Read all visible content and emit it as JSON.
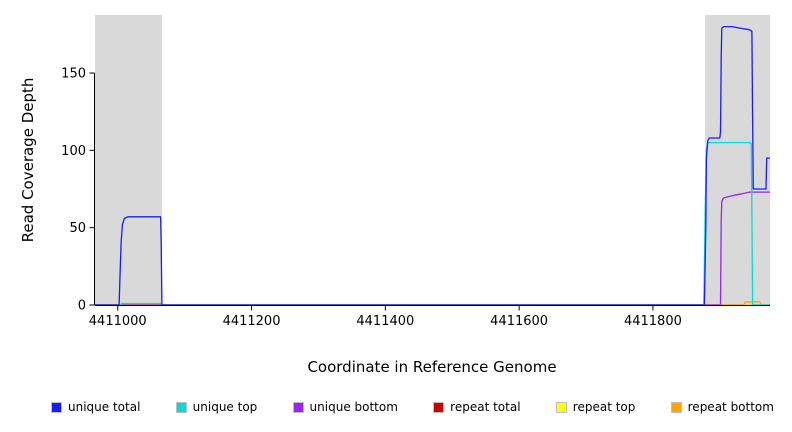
{
  "figure": {
    "background": "#ffffff"
  },
  "chart_data": {
    "type": "line",
    "title": "",
    "xlabel": "Coordinate in Reference Genome",
    "ylabel": "Read Coverage Depth",
    "xlim": [
      4410966,
      4411975
    ],
    "ylim": [
      0,
      187.5
    ],
    "xticks": [
      4411000,
      4411200,
      4411400,
      4411600,
      4411800
    ],
    "yticks": [
      0,
      50,
      100,
      150
    ],
    "grid": false,
    "plot_background": "#ffffff",
    "axis_color": "#000000",
    "highlight_regions": [
      {
        "x0": 4410966,
        "x1": 4411066,
        "color": "#d9d9d9"
      },
      {
        "x0": 4411878,
        "x1": 4411975,
        "color": "#d9d9d9"
      }
    ],
    "series": [
      {
        "name": "repeat total",
        "color": "#cc0000",
        "points": [
          [
            4410966,
            0
          ],
          [
            4411975,
            0
          ]
        ]
      },
      {
        "name": "repeat top",
        "color": "#ffff00",
        "points": [
          [
            4410966,
            0
          ],
          [
            4411005,
            0
          ],
          [
            4411007,
            1
          ],
          [
            4411064,
            1
          ],
          [
            4411066,
            0
          ],
          [
            4411975,
            0
          ]
        ]
      },
      {
        "name": "repeat bottom",
        "color": "#ffa500",
        "points": [
          [
            4410966,
            0
          ],
          [
            4411936,
            0
          ],
          [
            4411938,
            2
          ],
          [
            4411960,
            2
          ],
          [
            4411962,
            0
          ],
          [
            4411975,
            0
          ]
        ]
      },
      {
        "name": "unique bottom",
        "color": "#a020f0",
        "points": [
          [
            4410966,
            0
          ],
          [
            4411901,
            0
          ],
          [
            4411902,
            55
          ],
          [
            4411903,
            67
          ],
          [
            4411905,
            69
          ],
          [
            4411912,
            70
          ],
          [
            4411922,
            71
          ],
          [
            4411934,
            72
          ],
          [
            4411944,
            73
          ],
          [
            4411975,
            73
          ]
        ]
      },
      {
        "name": "unique top",
        "color": "#00dcdc",
        "points": [
          [
            4410966,
            0
          ],
          [
            4411004,
            0
          ],
          [
            4411006,
            1
          ],
          [
            4411064,
            1
          ],
          [
            4411066,
            0
          ],
          [
            4411876,
            0
          ],
          [
            4411878,
            60
          ],
          [
            4411880,
            100
          ],
          [
            4411882,
            105
          ],
          [
            4411946,
            105
          ],
          [
            4411947,
            104
          ],
          [
            4411948,
            60
          ],
          [
            4411949,
            0
          ],
          [
            4411975,
            0
          ]
        ]
      },
      {
        "name": "unique total",
        "color": "#1a1aff",
        "points": [
          [
            4410966,
            0
          ],
          [
            4411002,
            0
          ],
          [
            4411003,
            15
          ],
          [
            4411005,
            40
          ],
          [
            4411007,
            52
          ],
          [
            4411010,
            56
          ],
          [
            4411015,
            57
          ],
          [
            4411064,
            57
          ],
          [
            4411065,
            40
          ],
          [
            4411066,
            0
          ],
          [
            4411877,
            0
          ],
          [
            4411879,
            50
          ],
          [
            4411880,
            95
          ],
          [
            4411882,
            106
          ],
          [
            4411884,
            108
          ],
          [
            4411900,
            108
          ],
          [
            4411901,
            112
          ],
          [
            4411902,
            160
          ],
          [
            4411903,
            179
          ],
          [
            4411906,
            180
          ],
          [
            4411918,
            180
          ],
          [
            4411930,
            179
          ],
          [
            4411944,
            178
          ],
          [
            4411948,
            177
          ],
          [
            4411949,
            120
          ],
          [
            4411950,
            75
          ],
          [
            4411969,
            75
          ],
          [
            4411970,
            95
          ],
          [
            4411975,
            95
          ]
        ]
      }
    ],
    "legend": {
      "position": "bottom",
      "entries": [
        {
          "label": "unique total",
          "color": "#1a1aff"
        },
        {
          "label": "unique top",
          "color": "#00dcdc"
        },
        {
          "label": "unique bottom",
          "color": "#a020f0"
        },
        {
          "label": "repeat total",
          "color": "#cc0000"
        },
        {
          "label": "repeat top",
          "color": "#ffff00"
        },
        {
          "label": "repeat bottom",
          "color": "#ffa500"
        }
      ]
    }
  }
}
